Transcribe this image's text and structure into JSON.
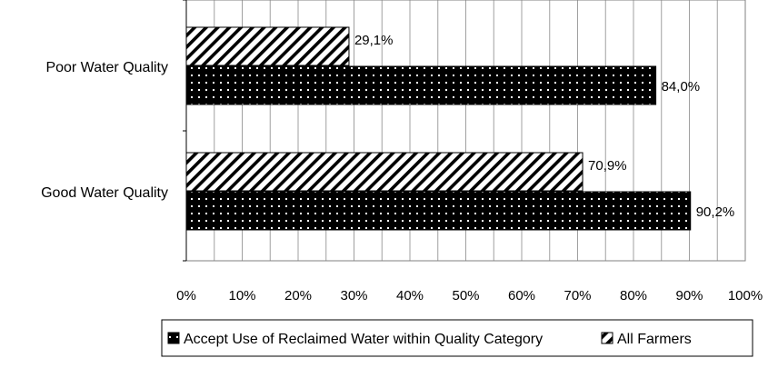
{
  "chart_data": {
    "type": "bar",
    "orientation": "horizontal",
    "categories": [
      "Poor Water Quality",
      "Good Water Quality"
    ],
    "series": [
      {
        "name": "All Farmers",
        "values": [
          29.1,
          70.9
        ],
        "labels": [
          "29,1%",
          "70,9%"
        ],
        "pattern": "diagonal-hatch"
      },
      {
        "name": "Accept Use of Reclaimed Water within Quality Category",
        "values": [
          84.0,
          90.2
        ],
        "labels": [
          "84,0%",
          "90,2%"
        ],
        "pattern": "dotted-black"
      }
    ],
    "xlim": [
      0,
      100
    ],
    "xticks": [
      0,
      10,
      20,
      30,
      40,
      50,
      60,
      70,
      80,
      90,
      100
    ],
    "xtick_labels": [
      "0%",
      "10%",
      "20%",
      "30%",
      "40%",
      "50%",
      "60%",
      "70%",
      "80%",
      "90%",
      "100%"
    ],
    "grid": true,
    "legend_position": "bottom",
    "legend_order": [
      "Accept Use of Reclaimed Water within Quality Category",
      "All Farmers"
    ]
  }
}
